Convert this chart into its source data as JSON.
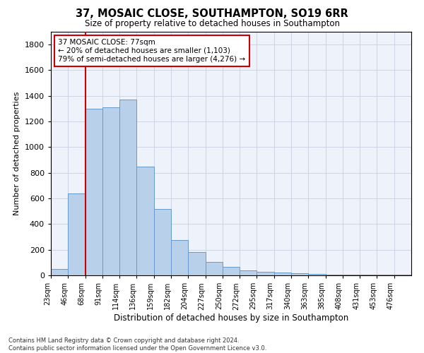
{
  "title": "37, MOSAIC CLOSE, SOUTHAMPTON, SO19 6RR",
  "subtitle": "Size of property relative to detached houses in Southampton",
  "xlabel": "Distribution of detached houses by size in Southampton",
  "ylabel": "Number of detached properties",
  "bar_color": "#b8d0ea",
  "bar_edge_color": "#6699cc",
  "background_color": "#eef2fa",
  "grid_color": "#c8d0e0",
  "annotation_text": "37 MOSAIC CLOSE: 77sqm\n← 20% of detached houses are smaller (1,103)\n79% of semi-detached houses are larger (4,276) →",
  "annotation_box_color": "#ffffff",
  "annotation_border_color": "#cc0000",
  "redline_x": 2,
  "footer": "Contains HM Land Registry data © Crown copyright and database right 2024.\nContains public sector information licensed under the Open Government Licence v3.0.",
  "categories": [
    "23sqm",
    "46sqm",
    "68sqm",
    "91sqm",
    "114sqm",
    "136sqm",
    "159sqm",
    "182sqm",
    "204sqm",
    "227sqm",
    "250sqm",
    "272sqm",
    "295sqm",
    "317sqm",
    "340sqm",
    "363sqm",
    "385sqm",
    "408sqm",
    "431sqm",
    "453sqm",
    "476sqm"
  ],
  "values": [
    50,
    640,
    1300,
    1310,
    1370,
    850,
    520,
    275,
    180,
    105,
    65,
    40,
    30,
    20,
    15,
    10,
    8,
    6,
    5,
    4,
    3
  ],
  "ylim": [
    0,
    1900
  ],
  "yticks": [
    0,
    200,
    400,
    600,
    800,
    1000,
    1200,
    1400,
    1600,
    1800
  ]
}
